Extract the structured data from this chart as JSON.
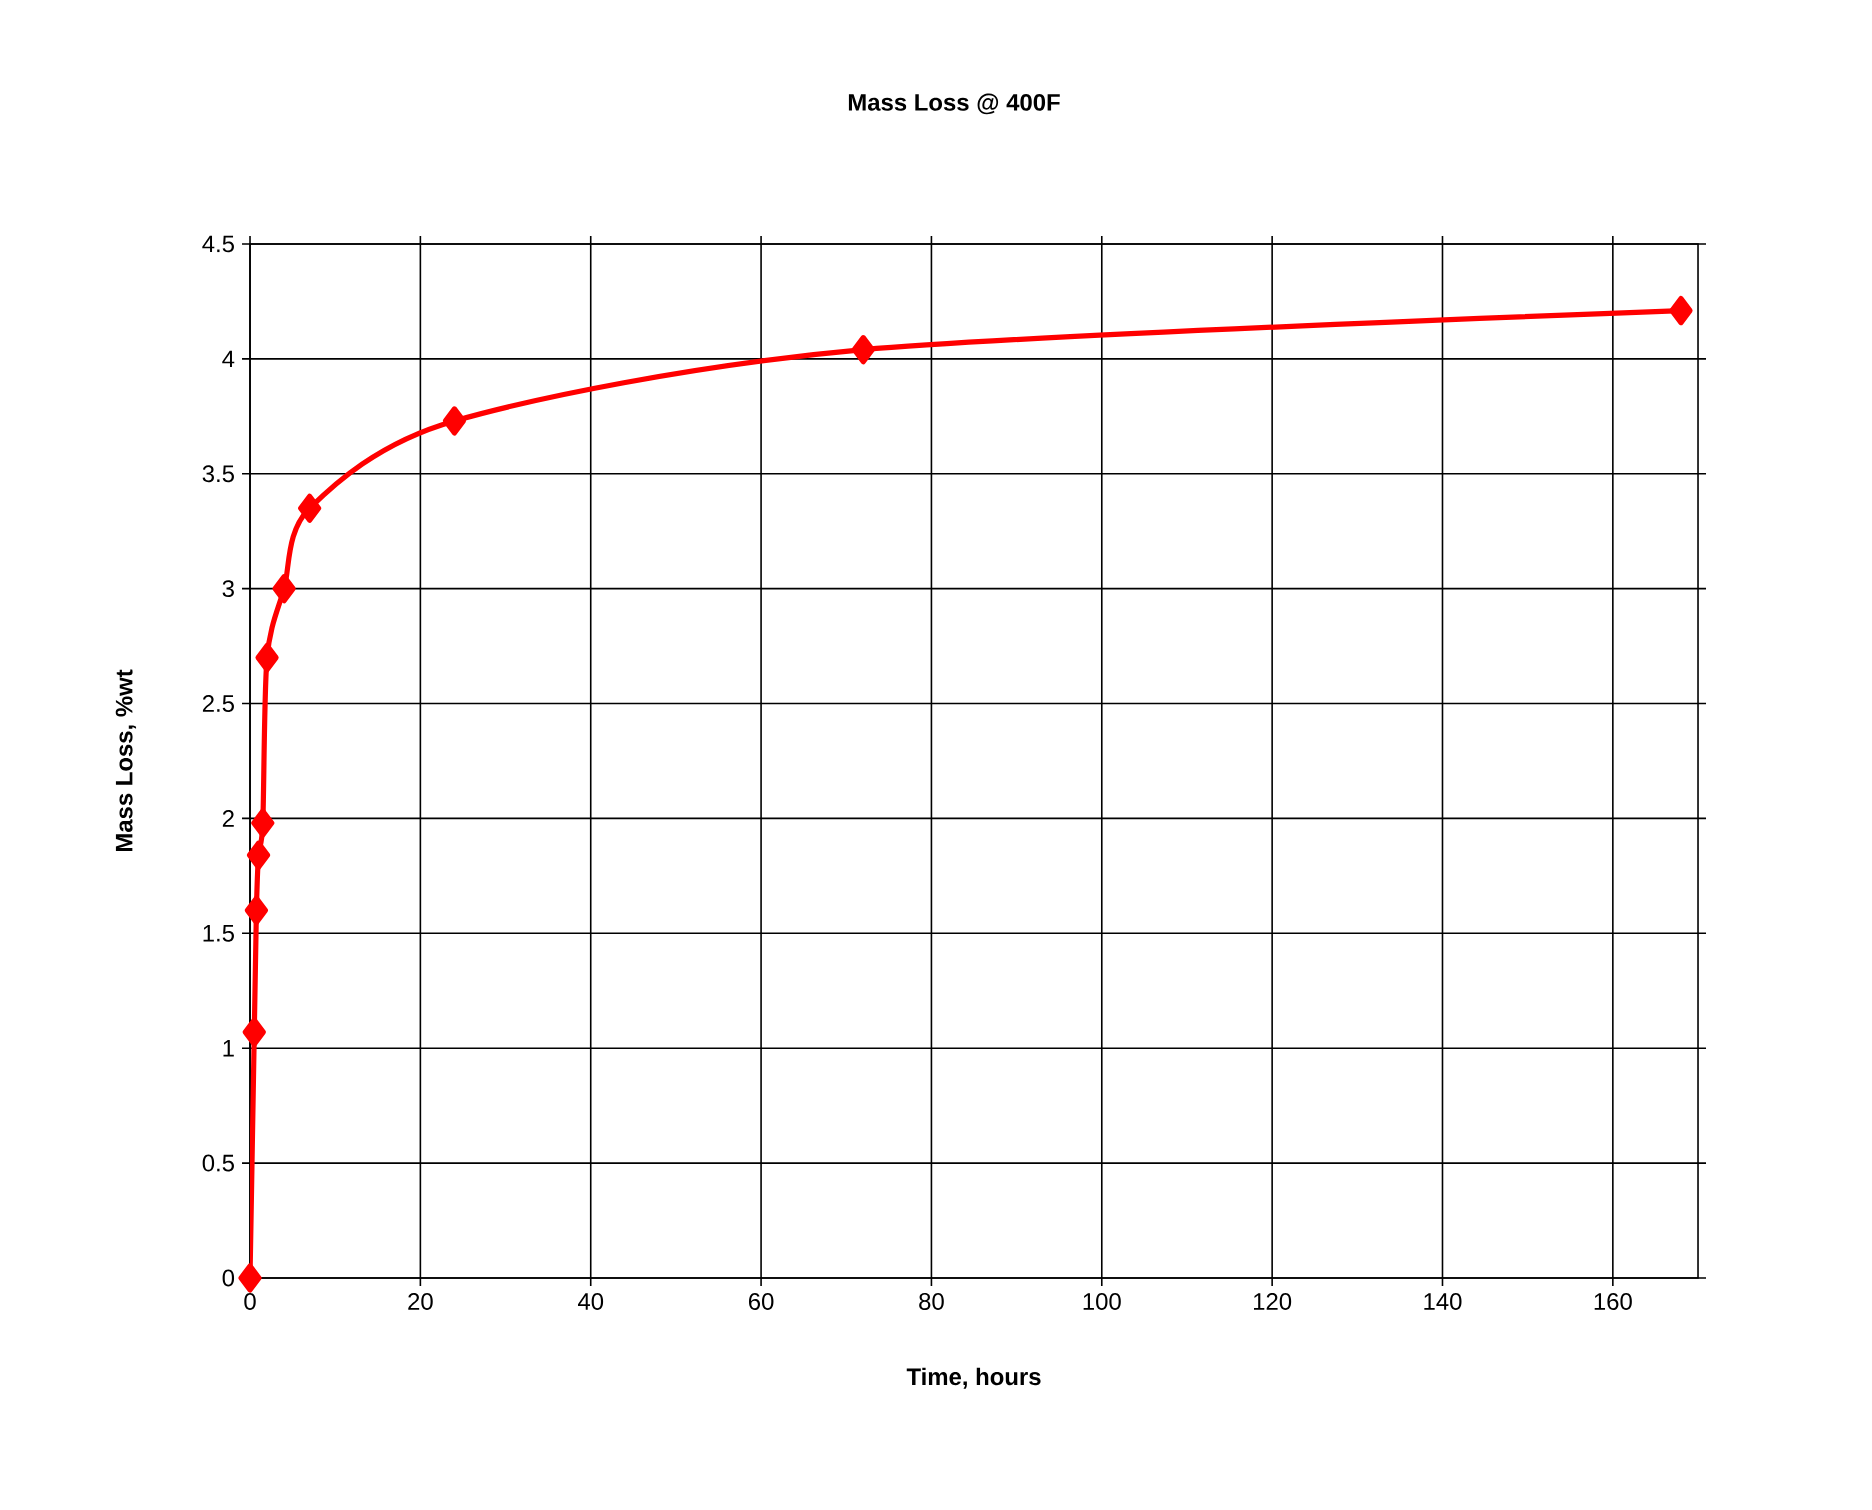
{
  "chart_data": {
    "type": "line",
    "title": "Mass Loss @ 400F",
    "xlabel": "Time, hours",
    "ylabel": "Mass Loss, %wt",
    "xlim": [
      0,
      170
    ],
    "xticks": [
      0,
      20,
      40,
      60,
      80,
      100,
      120,
      140,
      160
    ],
    "ylim": [
      0,
      4.5
    ],
    "yticks": [
      0,
      0.5,
      1,
      1.5,
      2,
      2.5,
      3,
      3.5,
      4,
      4.5
    ],
    "grid": true,
    "marker": "diamond",
    "line_style": "solid",
    "series": [
      {
        "color": "#ff0000",
        "x": [
          0,
          0.5,
          0.75,
          1,
          1.5,
          2,
          4,
          7,
          24,
          72,
          168
        ],
        "values": [
          0,
          1.07,
          1.6,
          1.84,
          1.98,
          2.7,
          3.0,
          3.35,
          3.73,
          4.04,
          4.21
        ]
      }
    ]
  }
}
